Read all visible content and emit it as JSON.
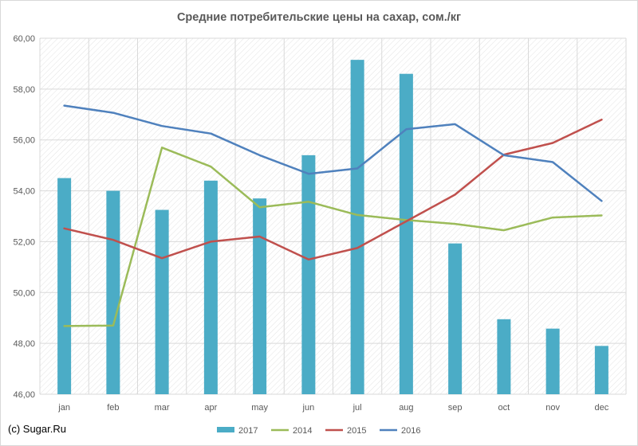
{
  "chart_data": {
    "type": "bar",
    "title": "Средние потребительские цены на сахар, сом./кг",
    "xlabel": "",
    "ylabel": "",
    "categories": [
      "jan",
      "feb",
      "mar",
      "apr",
      "may",
      "jun",
      "jul",
      "aug",
      "sep",
      "oct",
      "nov",
      "dec"
    ],
    "ylim": [
      46,
      60
    ],
    "yticks": [
      "46,00",
      "48,00",
      "50,00",
      "52,00",
      "54,00",
      "56,00",
      "58,00",
      "60,00"
    ],
    "grid": true,
    "legend_position": "bottom",
    "series": [
      {
        "name": "2017",
        "kind": "bar",
        "color": "#4bacc6",
        "values": [
          54.5,
          54.0,
          53.25,
          54.4,
          53.7,
          55.4,
          59.15,
          58.6,
          51.93,
          48.95,
          48.58,
          47.9
        ]
      },
      {
        "name": "2014",
        "kind": "line",
        "color": "#9bbb59",
        "values": [
          48.68,
          48.7,
          55.7,
          54.95,
          53.35,
          53.57,
          53.05,
          52.85,
          52.7,
          52.45,
          52.95,
          53.03
        ]
      },
      {
        "name": "2015",
        "kind": "line",
        "color": "#c0504d",
        "values": [
          52.52,
          52.07,
          51.35,
          52.0,
          52.2,
          51.3,
          51.75,
          52.8,
          53.85,
          55.42,
          55.88,
          56.8
        ]
      },
      {
        "name": "2016",
        "kind": "line",
        "color": "#4f81bd",
        "values": [
          57.35,
          57.07,
          56.55,
          56.25,
          55.4,
          54.67,
          54.88,
          56.42,
          56.62,
          55.4,
          55.13,
          53.6
        ]
      }
    ]
  },
  "credit": "(c) Sugar.Ru"
}
